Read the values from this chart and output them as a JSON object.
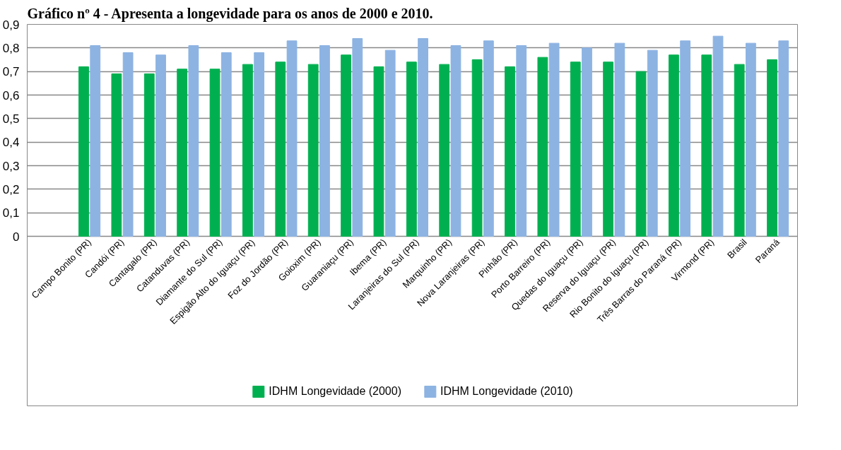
{
  "chart_data": {
    "type": "bar",
    "title": "Gráfico nº 4 - Apresenta a longevidade para os anos de 2000 e 2010.",
    "categories": [
      "Campo Bonito (PR)",
      "Candói (PR)",
      "Cantagalo (PR)",
      "Catanduvas (PR)",
      "Diamante do Sul (PR)",
      "Espigão Alto do Iguaçu (PR)",
      "Foz do Jordão (PR)",
      "Goioxim (PR)",
      "Guaraniaçu (PR)",
      "Ibema (PR)",
      "Laranjeiras do Sul (PR)",
      "Marquinho (PR)",
      "Nova Laranjeiras (PR)",
      "Pinhão (PR)",
      "Porto Barreiro (PR)",
      "Quedas do Iguaçu (PR)",
      "Reserva do Iguaçu (PR)",
      "Rio Bonito do Iguaçu (PR)",
      "Três Barras do Paraná (PR)",
      "Virmond (PR)",
      "Brasil",
      "Paraná"
    ],
    "series": [
      {
        "name": "IDHM Longevidade (2000)",
        "color": "#00b050",
        "values": [
          0.72,
          0.69,
          0.69,
          0.71,
          0.71,
          0.73,
          0.74,
          0.73,
          0.77,
          0.72,
          0.74,
          0.73,
          0.75,
          0.72,
          0.76,
          0.74,
          0.74,
          0.7,
          0.77,
          0.77,
          0.73,
          0.75
        ]
      },
      {
        "name": "IDHM Longevidade (2010)",
        "color": "#8db3e2",
        "values": [
          0.81,
          0.78,
          0.77,
          0.81,
          0.78,
          0.78,
          0.83,
          0.81,
          0.84,
          0.79,
          0.84,
          0.81,
          0.83,
          0.81,
          0.82,
          0.8,
          0.82,
          0.79,
          0.83,
          0.85,
          0.82,
          0.83
        ]
      }
    ],
    "ylim": [
      0,
      0.9
    ],
    "yticks": [
      {
        "value": 0,
        "label": "0"
      },
      {
        "value": 0.1,
        "label": "0,1"
      },
      {
        "value": 0.2,
        "label": "0,2"
      },
      {
        "value": 0.3,
        "label": "0,3"
      },
      {
        "value": 0.4,
        "label": "0,4"
      },
      {
        "value": 0.5,
        "label": "0,5"
      },
      {
        "value": 0.6,
        "label": "0,6"
      },
      {
        "value": 0.7,
        "label": "0,7"
      },
      {
        "value": 0.8,
        "label": "0,8"
      },
      {
        "value": 0.9,
        "label": "0,9"
      }
    ],
    "grid": "y",
    "legend": "bottom"
  }
}
